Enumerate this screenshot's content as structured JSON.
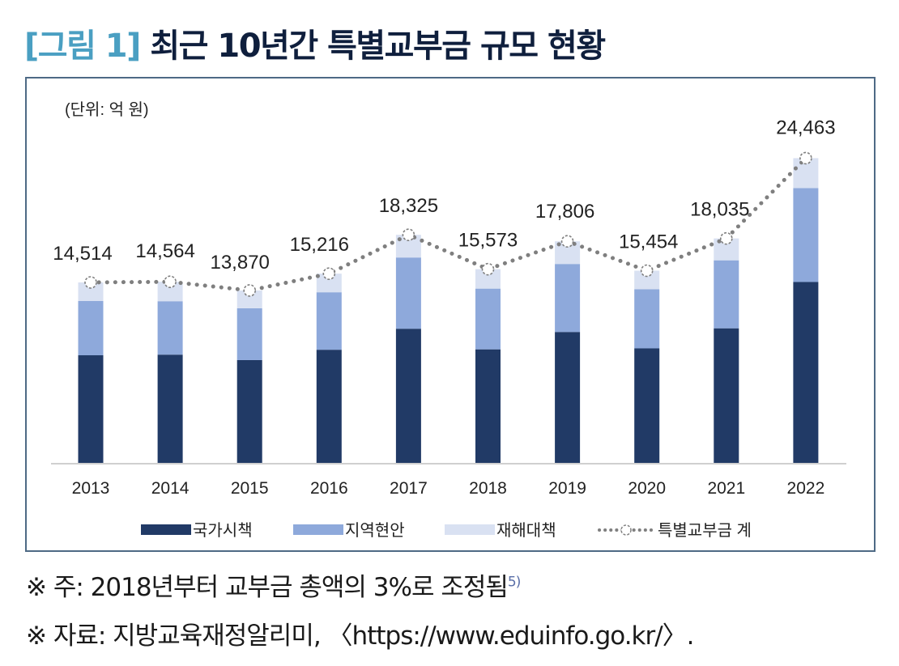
{
  "title": {
    "tag": "[그림 1]",
    "main": "최근 10년간 특별교부금 규모 현황"
  },
  "unit_label": "(단위: 억 원)",
  "colors": {
    "national": "#213a66",
    "regional": "#8ea9db",
    "disaster": "#d9e1f2",
    "total_line": "#7f7f7f",
    "frame": "#4e6a85",
    "title_tag": "#4a9fc2",
    "title_main": "#0f1f3d"
  },
  "chart_data": {
    "type": "bar",
    "stacked": true,
    "title": "최근 10년간 특별교부금 규모 현황",
    "xlabel": "",
    "ylabel": "억 원",
    "unit": "(단위: 억 원)",
    "categories": [
      "2013",
      "2014",
      "2015",
      "2016",
      "2017",
      "2018",
      "2019",
      "2020",
      "2021",
      "2022"
    ],
    "series": [
      {
        "name": "국가시책",
        "type": "bar",
        "color": "#213a66",
        "values": [
          8682,
          8732,
          8296,
          9125,
          10807,
          9157,
          10547,
          9233,
          10841,
          14547
        ]
      },
      {
        "name": "지역현안",
        "type": "bar",
        "color": "#8ea9db",
        "values": [
          4342,
          4277,
          4148,
          4601,
          5703,
          4861,
          5444,
          4731,
          5444,
          7518
        ]
      },
      {
        "name": "재해대책",
        "type": "bar",
        "color": "#d9e1f2",
        "values": [
          1490,
          1555,
          1426,
          1490,
          1815,
          1555,
          1815,
          1490,
          1750,
          2398
        ]
      },
      {
        "name": "특별교부금 계",
        "type": "line",
        "style": "dotted",
        "marker": "dashed-circle",
        "color": "#7f7f7f",
        "values": [
          14514,
          14564,
          13870,
          15216,
          18325,
          15573,
          17806,
          15454,
          18035,
          24463
        ]
      }
    ],
    "data_labels": [
      "14,514",
      "14,564",
      "13,870",
      "15,216",
      "18,325",
      "15,573",
      "17,806",
      "15,454",
      "18,035",
      "24,463"
    ],
    "ylim": [
      0,
      26000
    ],
    "grid": false,
    "legend_position": "bottom",
    "legend": [
      "국가시책",
      "지역현안",
      "재해대책",
      "특별교부금 계"
    ]
  },
  "notes": {
    "note1": "※ 주: 2018년부터 교부금 총액의 3%로 조정됨",
    "note1_sup": "5)",
    "note2": "※ 자료: 지방교육재정알리미, 〈https://www.eduinfo.go.kr/〉."
  }
}
